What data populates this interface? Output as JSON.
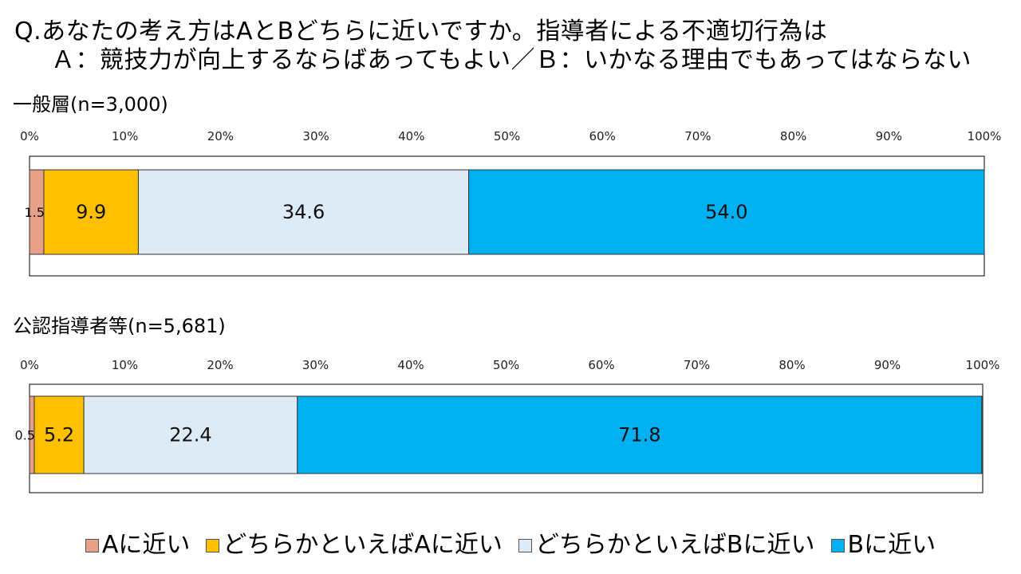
{
  "question": {
    "line1": "Q.あなたの考え方はAとBどちらに近いですか。指導者による不適切行為は",
    "line2": "Ａ：競技力が向上するならばあってもよい／Ｂ：いかなる理由でもあってはならない"
  },
  "chart_data": [
    {
      "type": "bar",
      "orientation": "horizontal-stacked-100",
      "title": "一般層(n=3,000)",
      "xlim": [
        0,
        100
      ],
      "x_ticks": [
        "0%",
        "10%",
        "20%",
        "30%",
        "40%",
        "50%",
        "60%",
        "70%",
        "80%",
        "90%",
        "100%"
      ],
      "series": [
        {
          "name": "Aに近い",
          "value": 1.5,
          "label": "1.5"
        },
        {
          "name": "どちらかといえばAに近い",
          "value": 9.9,
          "label": "9.9"
        },
        {
          "name": "どちらかといえばBに近い",
          "value": 34.6,
          "label": "34.6"
        },
        {
          "name": "Bに近い",
          "value": 54.0,
          "label": "54.0"
        }
      ]
    },
    {
      "type": "bar",
      "orientation": "horizontal-stacked-100",
      "title": "公認指導者等(n=5,681)",
      "xlim": [
        0,
        100
      ],
      "x_ticks": [
        "0%",
        "10%",
        "20%",
        "30%",
        "40%",
        "50%",
        "60%",
        "70%",
        "80%",
        "90%",
        "100%"
      ],
      "series": [
        {
          "name": "Aに近い",
          "value": 0.5,
          "label": "0.5"
        },
        {
          "name": "どちらかといえばAに近い",
          "value": 5.2,
          "label": "5.2"
        },
        {
          "name": "どちらかといえばBに近い",
          "value": 22.4,
          "label": "22.4"
        },
        {
          "name": "Bに近い",
          "value": 71.8,
          "label": "71.8"
        }
      ]
    }
  ],
  "legend": [
    {
      "label": "Aに近い",
      "color": "#E8A08A"
    },
    {
      "label": "どちらかといえばAに近い",
      "color": "#FFC000"
    },
    {
      "label": "どちらかといえばBに近い",
      "color": "#DDEBF7"
    },
    {
      "label": "Bに近い",
      "color": "#00B0F0"
    }
  ]
}
